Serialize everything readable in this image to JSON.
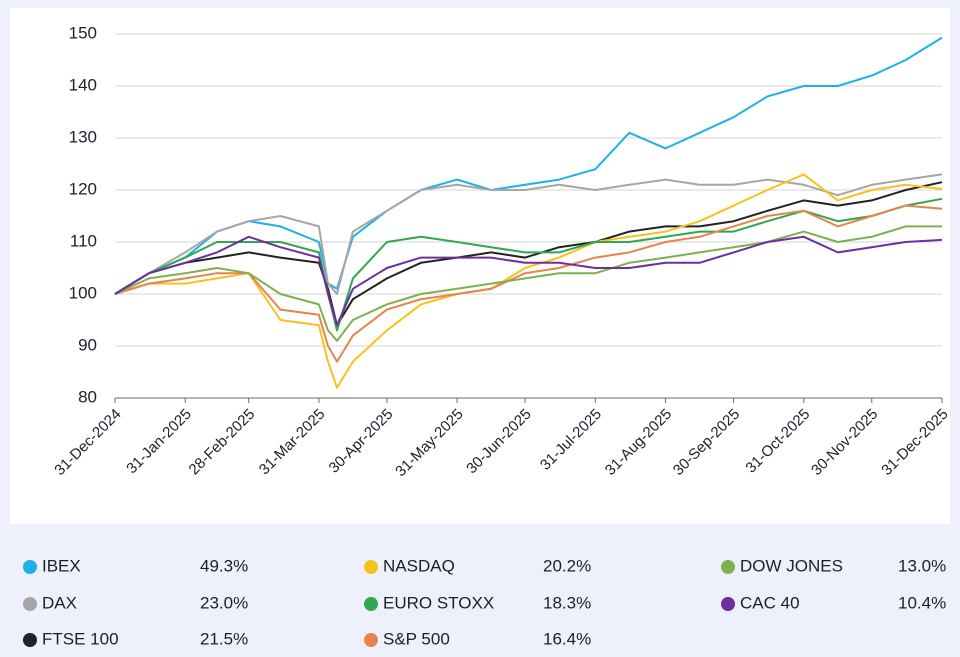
{
  "chart_data": {
    "type": "line",
    "x": [
      "2024-12-31",
      "2025-01-15",
      "2025-01-31",
      "2025-02-14",
      "2025-02-28",
      "2025-03-14",
      "2025-03-31",
      "2025-04-04",
      "2025-04-08",
      "2025-04-15",
      "2025-04-30",
      "2025-05-15",
      "2025-05-31",
      "2025-06-15",
      "2025-06-30",
      "2025-07-15",
      "2025-07-31",
      "2025-08-15",
      "2025-08-31",
      "2025-09-15",
      "2025-09-30",
      "2025-10-15",
      "2025-10-31",
      "2025-11-15",
      "2025-11-30",
      "2025-12-15",
      "2025-12-31"
    ],
    "series": [
      {
        "name": "IBEX",
        "change": "49.3%",
        "color": "#1fb0e6",
        "values": [
          100,
          104,
          107,
          112,
          114,
          113,
          110,
          102,
          101,
          111,
          116,
          120,
          122,
          120,
          121,
          122,
          124,
          131,
          128,
          131,
          134,
          138,
          140,
          140,
          142,
          145,
          149.3
        ]
      },
      {
        "name": "DAX",
        "change": "23.0%",
        "color": "#a6a6a6",
        "values": [
          100,
          104,
          108,
          112,
          114,
          115,
          113,
          102,
          100,
          112,
          116,
          120,
          121,
          120,
          120,
          121,
          120,
          121,
          122,
          121,
          121,
          122,
          121,
          119,
          121,
          122,
          123
        ]
      },
      {
        "name": "FTSE 100",
        "change": "21.5%",
        "color": "#222222",
        "values": [
          100,
          104,
          106,
          107,
          108,
          107,
          106,
          101,
          94,
          99,
          103,
          106,
          107,
          108,
          107,
          109,
          110,
          112,
          113,
          113,
          114,
          116,
          118,
          117,
          118,
          120,
          121.5
        ]
      },
      {
        "name": "NASDAQ",
        "change": "20.2%",
        "color": "#f7c21a",
        "values": [
          100,
          102,
          102,
          103,
          104,
          95,
          94,
          87,
          82,
          87,
          93,
          98,
          100,
          101,
          105,
          107,
          110,
          111,
          112,
          114,
          117,
          120,
          123,
          118,
          120,
          121,
          120.2
        ]
      },
      {
        "name": "EURO STOXX",
        "change": "18.3%",
        "color": "#2fa84f",
        "values": [
          100,
          104,
          107,
          110,
          110,
          110,
          108,
          100,
          93,
          103,
          110,
          111,
          110,
          109,
          108,
          108,
          110,
          110,
          111,
          112,
          112,
          114,
          116,
          114,
          115,
          117,
          118.3
        ]
      },
      {
        "name": "S&P 500",
        "change": "16.4%",
        "color": "#e8834a",
        "values": [
          100,
          102,
          103,
          104,
          104,
          97,
          96,
          90,
          87,
          92,
          97,
          99,
          100,
          101,
          104,
          105,
          107,
          108,
          110,
          111,
          113,
          115,
          116,
          113,
          115,
          117,
          116.4
        ]
      },
      {
        "name": "DOW JONES",
        "change": "13.0%",
        "color": "#7fb04f",
        "values": [
          100,
          103,
          104,
          105,
          104,
          100,
          98,
          93,
          91,
          95,
          98,
          100,
          101,
          102,
          103,
          104,
          104,
          106,
          107,
          108,
          109,
          110,
          112,
          110,
          111,
          113,
          113
        ]
      },
      {
        "name": "CAC 40",
        "change": "10.4%",
        "color": "#6d2f9e",
        "values": [
          100,
          104,
          106,
          108,
          111,
          109,
          107,
          100,
          94,
          101,
          105,
          107,
          107,
          107,
          106,
          106,
          105,
          105,
          106,
          106,
          108,
          110,
          111,
          108,
          109,
          110,
          110.4
        ]
      }
    ],
    "ylim": [
      80,
      150
    ],
    "yticks": [
      80,
      90,
      100,
      110,
      120,
      130,
      140,
      150
    ],
    "xlim": [
      "2024-12-31",
      "2025-12-31"
    ],
    "xticks": [
      {
        "value": "2024-12-31",
        "label": "31-Dec-2024"
      },
      {
        "value": "2025-01-31",
        "label": "31-Jan-2025"
      },
      {
        "value": "2025-02-28",
        "label": "28-Feb-2025"
      },
      {
        "value": "2025-03-31",
        "label": "31-Mar-2025"
      },
      {
        "value": "2025-04-30",
        "label": "30-Apr-2025"
      },
      {
        "value": "2025-05-31",
        "label": "31-May-2025"
      },
      {
        "value": "2025-06-30",
        "label": "30-Jun-2025"
      },
      {
        "value": "2025-07-31",
        "label": "31-Jul-2025"
      },
      {
        "value": "2025-08-31",
        "label": "31-Aug-2025"
      },
      {
        "value": "2025-09-30",
        "label": "30-Sep-2025"
      },
      {
        "value": "2025-10-31",
        "label": "31-Oct-2025"
      },
      {
        "value": "2025-11-30",
        "label": "30-Nov-2025"
      },
      {
        "value": "2025-12-31",
        "label": "31-Dec-2025"
      }
    ],
    "grid": true
  }
}
